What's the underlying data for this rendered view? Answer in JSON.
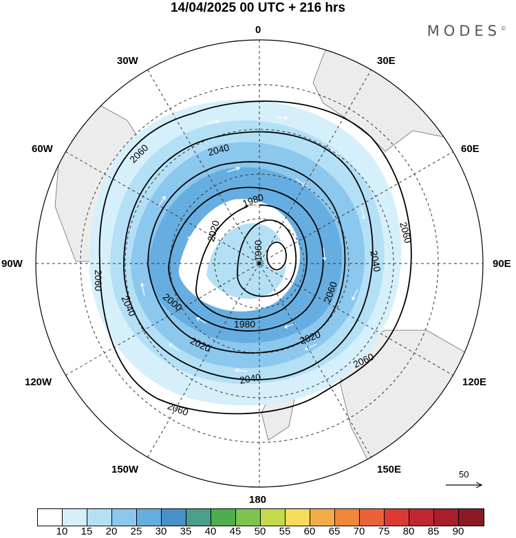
{
  "title": "14/04/2025  00 UTC  + 216 hrs",
  "brand": "MODES",
  "brand_mark": "©",
  "longitude_labels": {
    "top": "0",
    "bottom": "180",
    "left": "90W",
    "right": "90E",
    "upper_left": "30W",
    "upper_right": "30E",
    "mid_upper_left": "60W",
    "mid_upper_right": "60E",
    "mid_lower_left": "120W",
    "mid_lower_right": "120E",
    "lower_left": "150W",
    "lower_right": "150E"
  },
  "contour_labels": [
    "2060",
    "2040",
    "1980",
    "2020",
    "1960",
    "2040",
    "2060",
    "2060",
    "2040",
    "2000",
    "1980",
    "2020",
    "2060",
    "2020",
    "2060",
    "2040",
    "2060"
  ],
  "wind_reference": {
    "value": "50"
  },
  "colorbar": {
    "ticks": [
      "10",
      "15",
      "20",
      "25",
      "30",
      "35",
      "40",
      "45",
      "50",
      "55",
      "60",
      "65",
      "70",
      "75",
      "80",
      "85",
      "90"
    ],
    "colors": [
      "#ffffff",
      "#d6f0fb",
      "#b4e0f6",
      "#8cc7ee",
      "#66aee1",
      "#4a90c8",
      "#4a9e8c",
      "#4cae4c",
      "#7cc44e",
      "#c4da4c",
      "#f6dc5a",
      "#f3ad48",
      "#ef8838",
      "#e8623a",
      "#d93a32",
      "#c02830",
      "#a81e2c",
      "#8a1a22"
    ]
  },
  "colors": {
    "land": "#ececec",
    "coast": "#555555",
    "grid": "#333333"
  }
}
